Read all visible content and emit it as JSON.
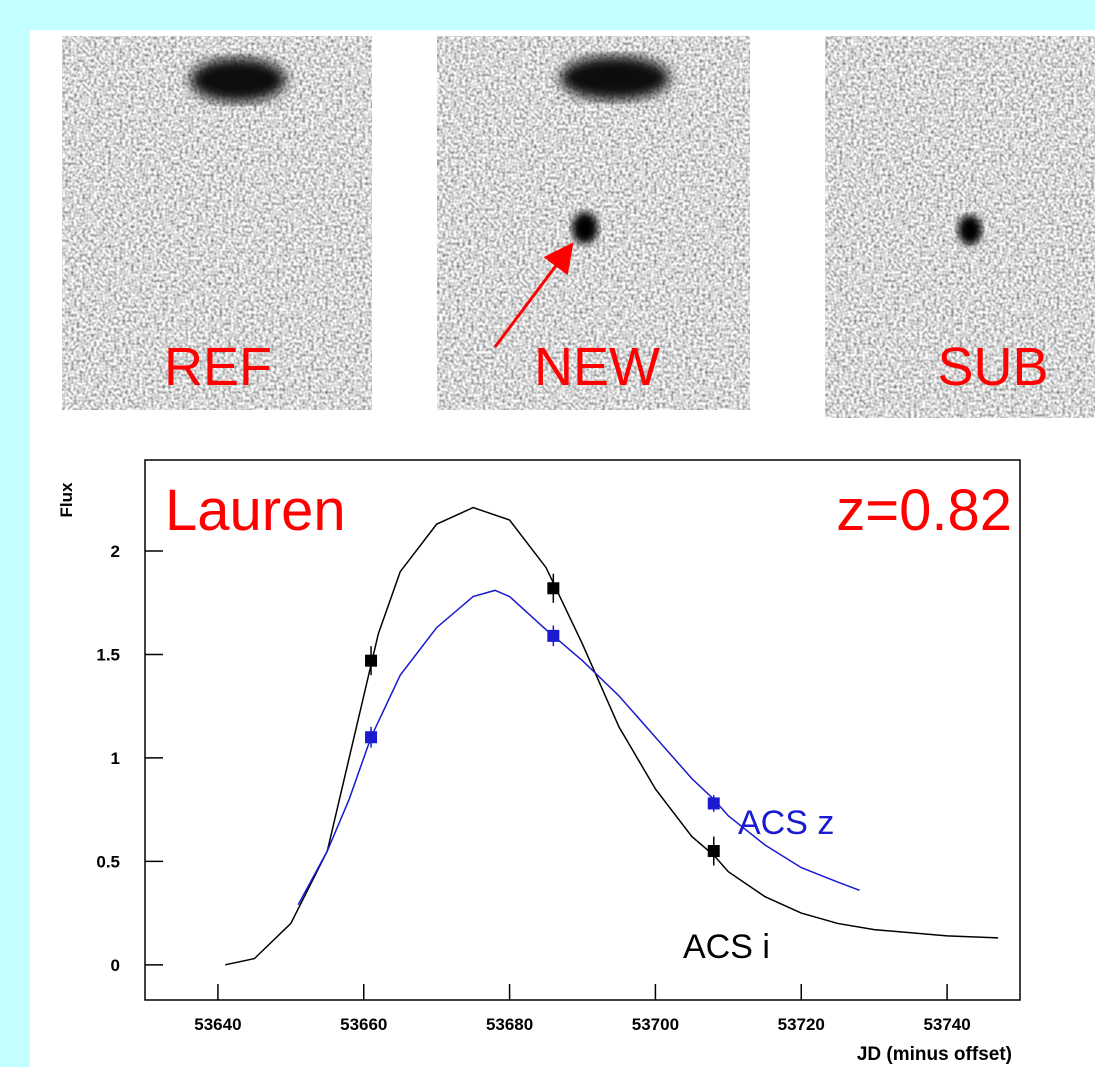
{
  "images": [
    {
      "label": "REF"
    },
    {
      "label": "NEW"
    },
    {
      "label": "SUB"
    }
  ],
  "chart_data": {
    "type": "scatter",
    "title": "Lauren",
    "annotation": "z=0.82",
    "xlabel": "JD (minus offset)",
    "ylabel": "Flux",
    "xlim": [
      53630,
      53750
    ],
    "ylim": [
      -0.17,
      2.44
    ],
    "xticks": [
      53640,
      53660,
      53680,
      53700,
      53720,
      53740
    ],
    "yticks": [
      0,
      0.5,
      1,
      1.5,
      2
    ],
    "series": [
      {
        "name": "ACS i",
        "color": "#000000",
        "x": [
          53661,
          53686,
          53708
        ],
        "values": [
          1.47,
          1.82,
          0.55
        ],
        "errors": [
          0.07,
          0.07,
          0.07
        ],
        "fit_x": [
          53641,
          53645,
          53650,
          53655,
          53660,
          53662,
          53665,
          53670,
          53675,
          53680,
          53685,
          53690,
          53695,
          53700,
          53705,
          53708,
          53710,
          53715,
          53720,
          53725,
          53730,
          53740,
          53747
        ],
        "fit_values": [
          0,
          0.03,
          0.2,
          0.55,
          1.3,
          1.6,
          1.9,
          2.13,
          2.21,
          2.15,
          1.92,
          1.55,
          1.15,
          0.85,
          0.62,
          0.53,
          0.45,
          0.33,
          0.25,
          0.2,
          0.17,
          0.14,
          0.13
        ]
      },
      {
        "name": "ACS z",
        "color": "#1a1ad0",
        "x": [
          53661,
          53686,
          53708
        ],
        "values": [
          1.1,
          1.59,
          0.78
        ],
        "errors": [
          0.05,
          0.05,
          0.04
        ],
        "fit_x": [
          53651,
          53655,
          53658,
          53661,
          53665,
          53670,
          53675,
          53678,
          53680,
          53685,
          53690,
          53695,
          53700,
          53705,
          53708,
          53710,
          53715,
          53720,
          53725,
          53728
        ],
        "fit_values": [
          0.29,
          0.55,
          0.8,
          1.1,
          1.4,
          1.63,
          1.78,
          1.81,
          1.78,
          1.62,
          1.47,
          1.3,
          1.1,
          0.9,
          0.8,
          0.72,
          0.58,
          0.47,
          0.4,
          0.36
        ]
      }
    ]
  }
}
